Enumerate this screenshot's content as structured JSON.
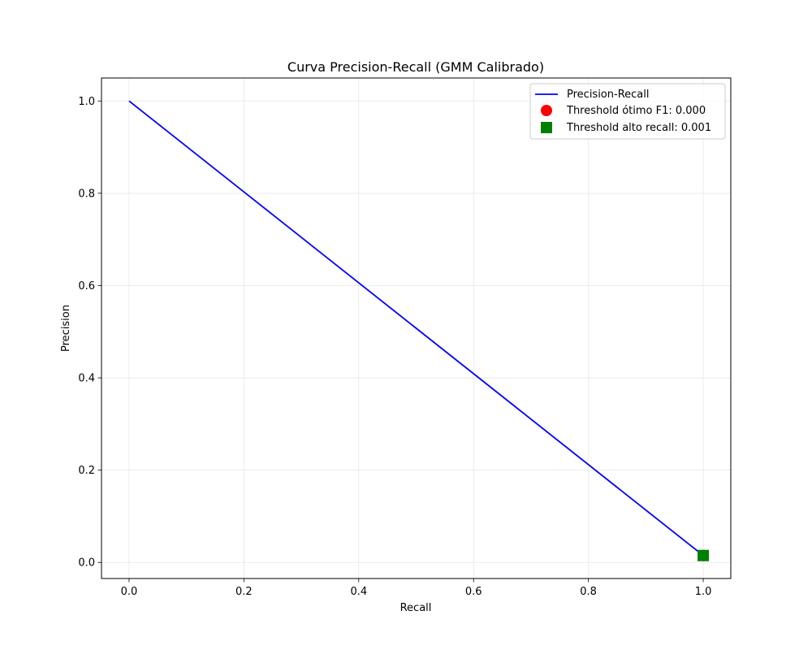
{
  "chart_data": {
    "type": "line",
    "title": "Curva Precision-Recall (GMM Calibrado)",
    "xlabel": "Recall",
    "ylabel": "Precision",
    "xlim": [
      -0.048,
      1.048
    ],
    "ylim": [
      -0.0348,
      1.0498
    ],
    "x_ticks": [
      0.0,
      0.2,
      0.4,
      0.6,
      0.8,
      1.0
    ],
    "y_ticks": [
      0.0,
      0.2,
      0.4,
      0.6,
      0.8,
      1.0
    ],
    "x_tick_labels": [
      "0.0",
      "0.2",
      "0.4",
      "0.6",
      "0.8",
      "1.0"
    ],
    "y_tick_labels": [
      "0.0",
      "0.2",
      "0.4",
      "0.6",
      "0.8",
      "1.0"
    ],
    "grid": true,
    "legend_position": "upper-right",
    "series": [
      {
        "name": "Precision-Recall",
        "kind": "line",
        "color": "#0000ff",
        "x": [
          0.0,
          1.0
        ],
        "y": [
          1.0,
          0.015
        ]
      }
    ],
    "markers": [
      {
        "name": "Threshold ótimo F1: 0.000",
        "kind": "scatter",
        "shape": "circle",
        "color": "#ff0000",
        "x": 1.0,
        "y": 0.015
      },
      {
        "name": "Threshold alto recall: 0.001",
        "kind": "scatter",
        "shape": "square",
        "color": "#008000",
        "x": 1.0,
        "y": 0.015
      }
    ]
  }
}
